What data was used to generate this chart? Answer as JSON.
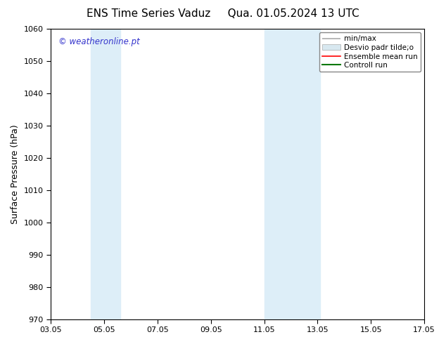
{
  "title_left": "ENS Time Series Vaduz",
  "title_right": "Qua. 01.05.2024 13 UTC",
  "ylabel": "Surface Pressure (hPa)",
  "ylim": [
    970,
    1060
  ],
  "yticks": [
    970,
    980,
    990,
    1000,
    1010,
    1020,
    1030,
    1040,
    1050,
    1060
  ],
  "xtick_labels": [
    "03.05",
    "05.05",
    "07.05",
    "09.05",
    "11.05",
    "13.05",
    "15.05",
    "17.05"
  ],
  "xtick_positions": [
    3,
    5,
    7,
    9,
    11,
    13,
    15,
    17
  ],
  "xlim": [
    3,
    17
  ],
  "blue_bands": [
    {
      "x_start": 4.5,
      "x_end": 5.6
    },
    {
      "x_start": 11.0,
      "x_end": 13.1
    }
  ],
  "blue_band_color": "#ddeef8",
  "watermark": "© weatheronline.pt",
  "watermark_color": "#3333cc",
  "legend_label_minmax": "min/max",
  "legend_label_desvio": "Desvio padr tilde;o",
  "legend_label_ensemble": "Ensemble mean run",
  "legend_label_control": "Controll run",
  "legend_color_minmax": "#aaaaaa",
  "legend_color_desvio": "#d8e8f0",
  "legend_color_ensemble": "#ff0000",
  "legend_color_control": "#007700",
  "background_color": "#ffffff",
  "title_fontsize": 11,
  "tick_fontsize": 8,
  "label_fontsize": 9,
  "legend_fontsize": 7.5,
  "watermark_fontsize": 8.5
}
